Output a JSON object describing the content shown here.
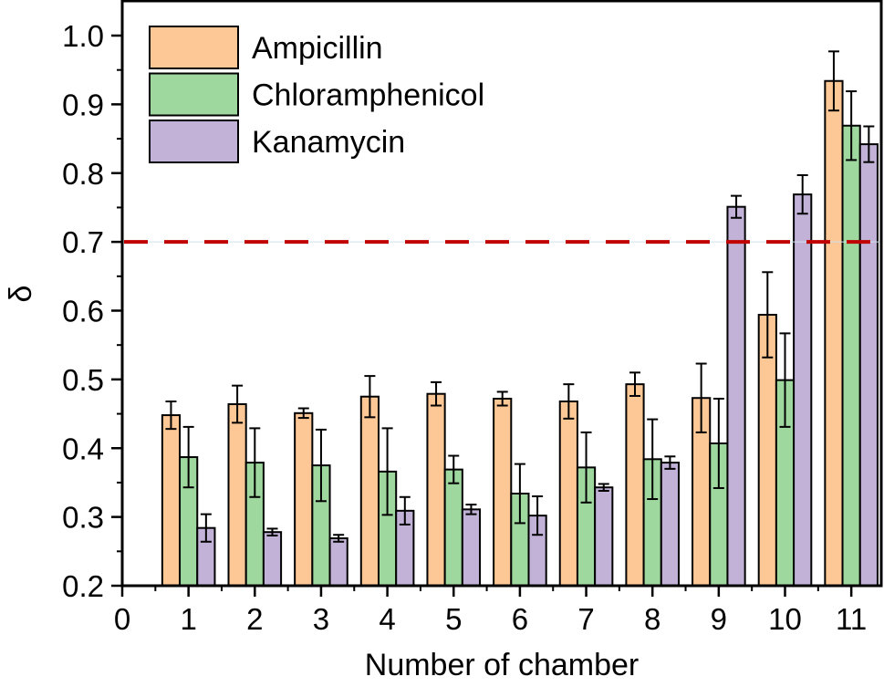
{
  "chart_data": {
    "type": "bar",
    "title": "",
    "xlabel": "Number of chamber",
    "ylabel": "δ",
    "xlim": [
      0,
      11.47
    ],
    "ylim": [
      0.2,
      1.04
    ],
    "x_ticks": [
      0,
      1,
      2,
      3,
      4,
      5,
      6,
      7,
      8,
      9,
      10,
      11
    ],
    "x_tick_labels": [
      "0",
      "1",
      "2",
      "3",
      "4",
      "5",
      "6",
      "7",
      "8",
      "9",
      "10",
      "11"
    ],
    "y_ticks": [
      0.2,
      0.3,
      0.4,
      0.5,
      0.6,
      0.7,
      0.8,
      0.9,
      1.0
    ],
    "y_tick_labels": [
      "0.2",
      "0.3",
      "0.4",
      "0.5",
      "0.6",
      "0.7",
      "0.8",
      "0.9",
      "1.0"
    ],
    "categories": [
      1,
      2,
      3,
      4,
      5,
      6,
      7,
      8,
      9,
      10,
      11
    ],
    "series": [
      {
        "name": "Ampicillin",
        "color": "#FDC896",
        "values": [
          0.448,
          0.464,
          0.451,
          0.475,
          0.479,
          0.472,
          0.468,
          0.493,
          0.473,
          0.594,
          0.934
        ],
        "errors": [
          0.02,
          0.027,
          0.007,
          0.03,
          0.017,
          0.01,
          0.025,
          0.017,
          0.05,
          0.062,
          0.043
        ]
      },
      {
        "name": "Chloramphenicol",
        "color": "#9FD89E",
        "values": [
          0.387,
          0.379,
          0.375,
          0.366,
          0.369,
          0.334,
          0.372,
          0.384,
          0.407,
          0.499,
          0.869
        ],
        "errors": [
          0.044,
          0.05,
          0.052,
          0.063,
          0.02,
          0.043,
          0.051,
          0.058,
          0.065,
          0.068,
          0.05
        ]
      },
      {
        "name": "Kanamycin",
        "color": "#C2B2D8",
        "values": [
          0.284,
          0.278,
          0.269,
          0.309,
          0.311,
          0.302,
          0.343,
          0.379,
          0.751,
          0.769,
          0.842
        ],
        "errors": [
          0.02,
          0.005,
          0.005,
          0.02,
          0.007,
          0.028,
          0.005,
          0.009,
          0.016,
          0.028,
          0.026
        ]
      }
    ],
    "reference_line": {
      "y": 0.7,
      "color": "#C00000",
      "style": "dashed"
    },
    "legend": {
      "position": "top-left",
      "entries": [
        "Ampicillin",
        "Chloramphenicol",
        "Kanamycin"
      ]
    },
    "grid": false
  }
}
